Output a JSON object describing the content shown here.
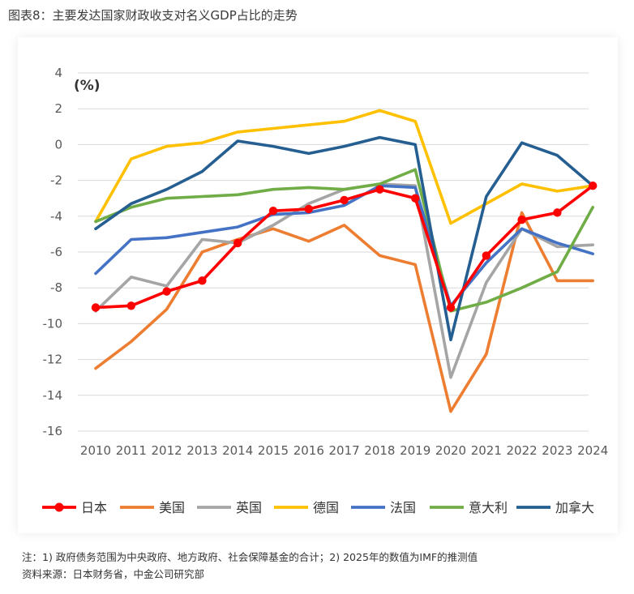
{
  "header": {
    "title": "图表8：主要发达国家财政收支对名义GDP占比的走势"
  },
  "footer": {
    "note": "注：1) 政府债务范围为中央政府、地方政府、社会保障基金的合计；2) 2025年的数值为IMF的推测值",
    "source": "资料来源：日本财务省，中金公司研究部"
  },
  "chart_data": {
    "type": "line",
    "title": "",
    "xlabel": "",
    "ylabel": "(%)",
    "x": [
      "2010",
      "2011",
      "2012",
      "2013",
      "2014",
      "2015",
      "2016",
      "2017",
      "2018",
      "2019",
      "2020",
      "2021",
      "2022",
      "2023",
      "2024"
    ],
    "ylim": [
      -16,
      4
    ],
    "yticks": [
      4,
      2,
      0,
      -2,
      -4,
      -6,
      -8,
      -10,
      -12,
      -14,
      -16
    ],
    "grid": true,
    "legend": "bottom",
    "series": [
      {
        "name": "日本",
        "color": "#ff0000",
        "markers": true,
        "values": [
          -9.1,
          -9.0,
          -8.2,
          -7.6,
          -5.5,
          -3.7,
          -3.6,
          -3.1,
          -2.5,
          -3.0,
          -9.1,
          -6.2,
          -4.2,
          -3.8,
          -2.3
        ]
      },
      {
        "name": "美国",
        "color": "#ed7d31",
        "markers": false,
        "values": [
          -12.5,
          -11.0,
          -9.2,
          -6.0,
          -5.3,
          -4.7,
          -5.4,
          -4.5,
          -6.2,
          -6.7,
          -14.9,
          -11.7,
          -3.8,
          -7.6,
          -7.6
        ]
      },
      {
        "name": "英国",
        "color": "#a5a5a5",
        "markers": false,
        "values": [
          -9.3,
          -7.4,
          -7.9,
          -5.3,
          -5.5,
          -4.5,
          -3.3,
          -2.5,
          -2.2,
          -2.3,
          -13.0,
          -7.7,
          -4.7,
          -5.7,
          -5.6
        ]
      },
      {
        "name": "德国",
        "color": "#ffc000",
        "markers": false,
        "values": [
          -4.3,
          -0.8,
          -0.1,
          0.1,
          0.7,
          0.9,
          1.1,
          1.3,
          1.9,
          1.3,
          -4.4,
          -3.3,
          -2.2,
          -2.6,
          -2.3
        ]
      },
      {
        "name": "法国",
        "color": "#4472c4",
        "markers": false,
        "values": [
          -7.2,
          -5.3,
          -5.2,
          -4.9,
          -4.6,
          -3.9,
          -3.8,
          -3.4,
          -2.3,
          -2.4,
          -9.0,
          -6.6,
          -4.7,
          -5.5,
          -6.1
        ]
      },
      {
        "name": "意大利",
        "color": "#70ad47",
        "markers": false,
        "values": [
          -4.3,
          -3.5,
          -3.0,
          -2.9,
          -2.8,
          -2.5,
          -2.4,
          -2.5,
          -2.2,
          -1.4,
          -9.3,
          -8.8,
          -8.0,
          -7.1,
          -3.5
        ]
      },
      {
        "name": "加拿大",
        "color": "#255e91",
        "markers": false,
        "values": [
          -4.7,
          -3.3,
          -2.5,
          -1.5,
          0.2,
          -0.1,
          -0.5,
          -0.1,
          0.4,
          0.0,
          -10.9,
          -2.9,
          0.1,
          -0.6,
          -2.3
        ]
      }
    ]
  }
}
